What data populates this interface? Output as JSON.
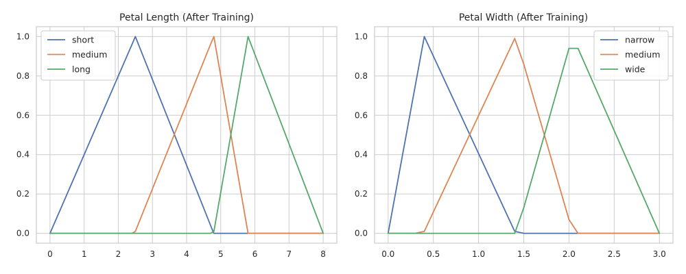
{
  "chart_data": [
    {
      "type": "line",
      "title": "Petal Length (After Training)",
      "xlabel": "",
      "ylabel": "",
      "xlim": [
        -0.4,
        8.4
      ],
      "ylim": [
        -0.05,
        1.05
      ],
      "xticks": [
        0,
        1,
        2,
        3,
        4,
        5,
        6,
        7,
        8
      ],
      "yticks": [
        0.0,
        0.2,
        0.4,
        0.6,
        0.8,
        1.0
      ],
      "xtick_labels": [
        "0",
        "1",
        "2",
        "3",
        "4",
        "5",
        "6",
        "7",
        "8"
      ],
      "ytick_labels": [
        "0.0",
        "0.2",
        "0.4",
        "0.6",
        "0.8",
        "1.0"
      ],
      "grid": true,
      "legend": "upper-left",
      "series": [
        {
          "name": "short",
          "color": "#4c72b0",
          "x": [
            0,
            2.4,
            2.5,
            4.75,
            4.8,
            8
          ],
          "y": [
            0,
            0.96,
            1.0,
            0.02,
            0,
            0
          ]
        },
        {
          "name": "medium",
          "color": "#dd8452",
          "x": [
            0,
            2.4,
            2.5,
            4.7,
            4.8,
            5.8,
            8
          ],
          "y": [
            0,
            0,
            0.01,
            0.96,
            1.0,
            0,
            0
          ]
        },
        {
          "name": "long",
          "color": "#55a868",
          "x": [
            0,
            4.7,
            4.8,
            5.7,
            5.8,
            8
          ],
          "y": [
            0,
            0,
            0.01,
            0.9,
            1.0,
            0
          ]
        }
      ]
    },
    {
      "type": "line",
      "title": "Petal Width (After Training)",
      "xlabel": "",
      "ylabel": "",
      "xlim": [
        -0.15,
        3.15
      ],
      "ylim": [
        -0.05,
        1.05
      ],
      "xticks": [
        0.0,
        0.5,
        1.0,
        1.5,
        2.0,
        2.5,
        3.0
      ],
      "yticks": [
        0.0,
        0.2,
        0.4,
        0.6,
        0.8,
        1.0
      ],
      "xtick_labels": [
        "0.0",
        "0.5",
        "1.0",
        "1.5",
        "2.0",
        "2.5",
        "3.0"
      ],
      "ytick_labels": [
        "0.0",
        "0.2",
        "0.4",
        "0.6",
        "0.8",
        "1.0"
      ],
      "grid": true,
      "legend": "upper-right",
      "series": [
        {
          "name": "narrow",
          "color": "#4c72b0",
          "x": [
            0,
            0.4,
            1.4,
            1.5,
            3.0
          ],
          "y": [
            0,
            1.0,
            0.01,
            0,
            0
          ]
        },
        {
          "name": "medium",
          "color": "#dd8452",
          "x": [
            0,
            0.3,
            0.4,
            1.4,
            1.5,
            2.0,
            2.1,
            3.0
          ],
          "y": [
            0,
            0,
            0.01,
            0.99,
            0.86,
            0.07,
            0,
            0
          ]
        },
        {
          "name": "wide",
          "color": "#55a868",
          "x": [
            0,
            1.4,
            1.5,
            2.0,
            2.1,
            3.0
          ],
          "y": [
            0,
            0,
            0.13,
            0.94,
            0.94,
            0
          ]
        }
      ]
    }
  ]
}
